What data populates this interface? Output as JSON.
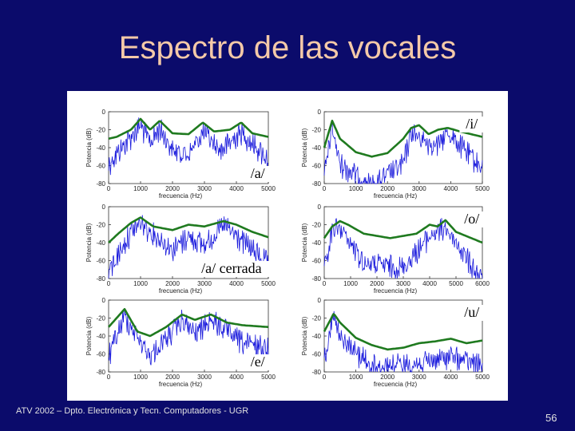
{
  "slide": {
    "title": "Espectro de las vocales",
    "footer": "ATV 2002 – Dpto. Electrónica y Tecn. Computadores - UGR",
    "page_number": "56"
  },
  "colors": {
    "background": "#0b0b6b",
    "title": "#f4c9a8",
    "spectrum": "#1a1adc",
    "envelope": "#1f7a1f"
  },
  "chart_data": [
    {
      "type": "line",
      "vowel_label": "/a/",
      "xlabel": "frecuencia (Hz)",
      "ylabel": "Potencia (dB)",
      "xticks": [
        "0",
        "1000",
        "2000",
        "3000",
        "4000",
        "5000"
      ],
      "yticks": [
        "0",
        "-20",
        "-40",
        "-60",
        "-80"
      ],
      "xlim": [
        0,
        5000
      ],
      "ylim": [
        -80,
        0
      ],
      "envelope": [
        [
          0,
          -30
        ],
        [
          250,
          -28
        ],
        [
          700,
          -20
        ],
        [
          1000,
          -8
        ],
        [
          1300,
          -20
        ],
        [
          1600,
          -10
        ],
        [
          2000,
          -24
        ],
        [
          2500,
          -25
        ],
        [
          2950,
          -12
        ],
        [
          3300,
          -22
        ],
        [
          3800,
          -20
        ],
        [
          4150,
          -12
        ],
        [
          4500,
          -24
        ],
        [
          5000,
          -28
        ]
      ],
      "spectrum_peaks": [
        [
          0,
          -45
        ],
        [
          700,
          -15
        ],
        [
          1000,
          -2
        ],
        [
          1300,
          -22
        ],
        [
          1600,
          -5
        ],
        [
          2000,
          -30
        ],
        [
          2500,
          -35
        ],
        [
          2950,
          -10
        ],
        [
          3500,
          -30
        ],
        [
          4150,
          -10
        ],
        [
          5000,
          -40
        ]
      ]
    },
    {
      "type": "line",
      "vowel_label": "/i/",
      "xlabel": "frecuencia (Hz)",
      "ylabel": "Potencia (dB)",
      "xticks": [
        "0",
        "1000",
        "2000",
        "3000",
        "4000",
        "5000"
      ],
      "yticks": [
        "0",
        "-20",
        "-40",
        "-60",
        "-80"
      ],
      "xlim": [
        0,
        5000
      ],
      "ylim": [
        -80,
        0
      ],
      "envelope": [
        [
          0,
          -40
        ],
        [
          250,
          -10
        ],
        [
          500,
          -30
        ],
        [
          1000,
          -45
        ],
        [
          1500,
          -50
        ],
        [
          2000,
          -46
        ],
        [
          2500,
          -30
        ],
        [
          2750,
          -18
        ],
        [
          3000,
          -15
        ],
        [
          3300,
          -25
        ],
        [
          3600,
          -20
        ],
        [
          3900,
          -18
        ],
        [
          4300,
          -22
        ],
        [
          5000,
          -28
        ]
      ],
      "spectrum_peaks": [
        [
          0,
          -60
        ],
        [
          250,
          -5
        ],
        [
          500,
          -45
        ],
        [
          1500,
          -70
        ],
        [
          2500,
          -45
        ],
        [
          2750,
          -10
        ],
        [
          3200,
          -20
        ],
        [
          3600,
          -25
        ],
        [
          3900,
          -10
        ],
        [
          5000,
          -50
        ]
      ]
    },
    {
      "type": "line",
      "vowel_label": "/a/ cerrada",
      "xlabel": "frecuencia (Hz)",
      "ylabel": "Potencia (dB)",
      "xticks": [
        "0",
        "1000",
        "2000",
        "3000",
        "4000",
        "5000"
      ],
      "yticks": [
        "0",
        "-20",
        "-40",
        "-60",
        "-80"
      ],
      "xlim": [
        0,
        5000
      ],
      "ylim": [
        -80,
        0
      ],
      "envelope": [
        [
          0,
          -40
        ],
        [
          300,
          -30
        ],
        [
          700,
          -18
        ],
        [
          1000,
          -12
        ],
        [
          1400,
          -22
        ],
        [
          2000,
          -26
        ],
        [
          2500,
          -20
        ],
        [
          3000,
          -22
        ],
        [
          3600,
          -16
        ],
        [
          4000,
          -20
        ],
        [
          4500,
          -28
        ],
        [
          5000,
          -34
        ]
      ],
      "spectrum_peaks": [
        [
          0,
          -60
        ],
        [
          700,
          -15
        ],
        [
          1000,
          -5
        ],
        [
          2000,
          -35
        ],
        [
          2500,
          -20
        ],
        [
          3000,
          -30
        ],
        [
          3600,
          -8
        ],
        [
          5000,
          -50
        ]
      ]
    },
    {
      "type": "line",
      "vowel_label": "/o/",
      "xlabel": "frecuencia (Hz)",
      "ylabel": "Potencia (dB)",
      "xticks": [
        "0",
        "1000",
        "2000",
        "3000",
        "4000",
        "5000",
        "6000"
      ],
      "yticks": [
        "0",
        "-20",
        "-40",
        "-60",
        "-80"
      ],
      "xlim": [
        0,
        6000
      ],
      "ylim": [
        -80,
        0
      ],
      "envelope": [
        [
          0,
          -35
        ],
        [
          300,
          -22
        ],
        [
          600,
          -16
        ],
        [
          900,
          -20
        ],
        [
          1500,
          -30
        ],
        [
          2500,
          -35
        ],
        [
          3500,
          -30
        ],
        [
          4000,
          -20
        ],
        [
          4300,
          -22
        ],
        [
          4600,
          -15
        ],
        [
          5000,
          -28
        ],
        [
          6000,
          -40
        ]
      ],
      "spectrum_peaks": [
        [
          0,
          -60
        ],
        [
          300,
          -15
        ],
        [
          600,
          -10
        ],
        [
          1500,
          -50
        ],
        [
          3000,
          -55
        ],
        [
          4000,
          -20
        ],
        [
          4600,
          -10
        ],
        [
          6000,
          -70
        ]
      ]
    },
    {
      "type": "line",
      "vowel_label": "/e/",
      "xlabel": "frecuencia (Hz)",
      "ylabel": "Potencia (dB)",
      "xticks": [
        "0",
        "1000",
        "2000",
        "3000",
        "4000",
        "5000"
      ],
      "yticks": [
        "0",
        "-20",
        "-40",
        "-60",
        "-80"
      ],
      "xlim": [
        0,
        5000
      ],
      "ylim": [
        -80,
        0
      ],
      "envelope": [
        [
          0,
          -30
        ],
        [
          250,
          -20
        ],
        [
          500,
          -10
        ],
        [
          900,
          -35
        ],
        [
          1300,
          -40
        ],
        [
          1800,
          -30
        ],
        [
          2300,
          -16
        ],
        [
          2700,
          -22
        ],
        [
          3200,
          -16
        ],
        [
          3700,
          -25
        ],
        [
          4200,
          -28
        ],
        [
          5000,
          -30
        ]
      ],
      "spectrum_peaks": [
        [
          0,
          -50
        ],
        [
          500,
          -5
        ],
        [
          1300,
          -50
        ],
        [
          2300,
          -10
        ],
        [
          2700,
          -25
        ],
        [
          3200,
          -8
        ],
        [
          4200,
          -35
        ],
        [
          5000,
          -40
        ]
      ]
    },
    {
      "type": "line",
      "vowel_label": "/u/",
      "xlabel": "frecuencia (Hz)",
      "ylabel": "Potencia (dB)",
      "xticks": [
        "0",
        "1000",
        "2000",
        "3000",
        "4000",
        "5000"
      ],
      "yticks": [
        "0",
        "-20",
        "-40",
        "-60",
        "-80"
      ],
      "xlim": [
        0,
        5000
      ],
      "ylim": [
        -80,
        0
      ],
      "envelope": [
        [
          0,
          -35
        ],
        [
          300,
          -15
        ],
        [
          500,
          -25
        ],
        [
          1000,
          -42
        ],
        [
          1500,
          -50
        ],
        [
          2000,
          -55
        ],
        [
          2500,
          -53
        ],
        [
          3000,
          -48
        ],
        [
          3500,
          -46
        ],
        [
          4000,
          -43
        ],
        [
          4500,
          -48
        ],
        [
          5000,
          -45
        ]
      ],
      "spectrum_peaks": [
        [
          0,
          -50
        ],
        [
          300,
          -5
        ],
        [
          500,
          -30
        ],
        [
          1500,
          -60
        ],
        [
          3000,
          -58
        ],
        [
          4000,
          -50
        ],
        [
          5000,
          -60
        ]
      ]
    }
  ]
}
